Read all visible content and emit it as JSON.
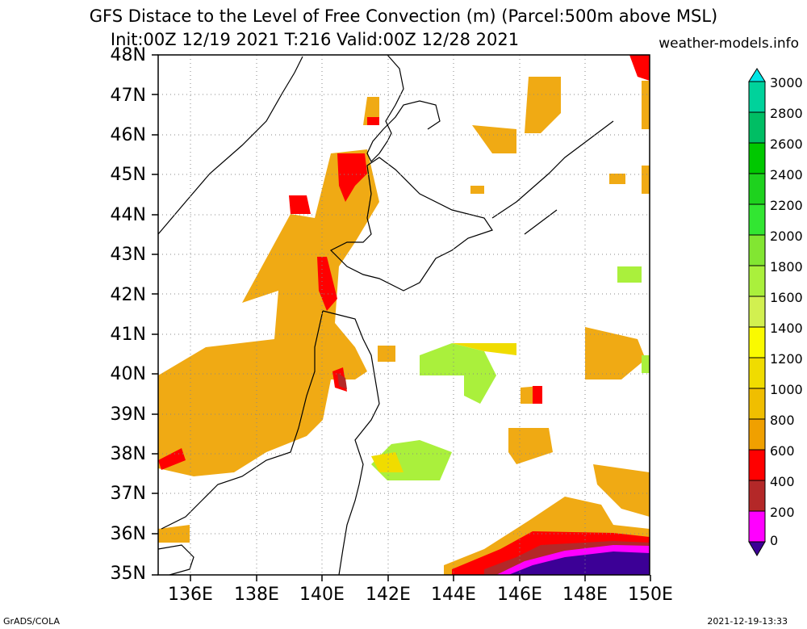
{
  "title": {
    "line1": "GFS Distace to the Level of Free Convection (m) (Parcel:500m above MSL)",
    "line2": "Init:00Z 12/19 2021 T:216 Valid:00Z 12/28 2021",
    "site": "weather-models.info"
  },
  "map": {
    "lon_range": [
      135,
      150
    ],
    "lat_range": [
      35,
      48
    ],
    "lat_labels": [
      "48N",
      "47N",
      "46N",
      "45N",
      "44N",
      "43N",
      "42N",
      "41N",
      "40N",
      "39N",
      "38N",
      "37N",
      "36N",
      "35N"
    ],
    "lon_labels": [
      "136E",
      "138E",
      "140E",
      "142E",
      "144E",
      "146E",
      "148E",
      "150E"
    ],
    "grid": true
  },
  "colorbar": {
    "labels": [
      "3000",
      "2800",
      "2600",
      "2400",
      "2200",
      "2000",
      "1800",
      "1600",
      "1400",
      "1200",
      "1000",
      "800",
      "600",
      "400",
      "200",
      "0"
    ],
    "colors": [
      "#00e6e6",
      "#00d29b",
      "#00c800",
      "#1ed21e",
      "#32e632",
      "#82e632",
      "#aaf03c",
      "#d2f050",
      "#fafa00",
      "#f0dc00",
      "#f0be00",
      "#f0a000",
      "#ff0000",
      "#b42828",
      "#ff00ff",
      "#3c0096"
    ]
  },
  "footer": {
    "left": "GrADS/COLA",
    "right": "2021-12-19-13:33"
  }
}
